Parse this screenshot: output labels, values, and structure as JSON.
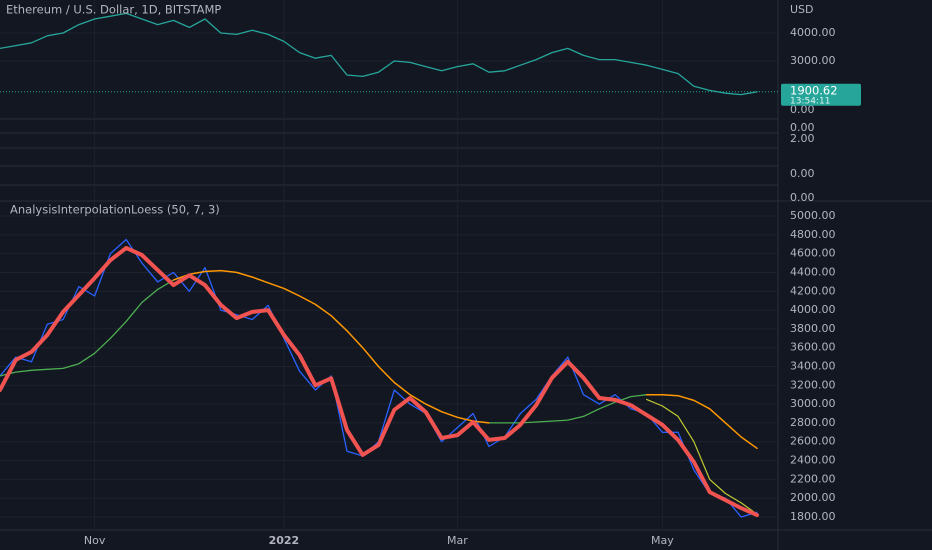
{
  "header": {
    "symbol": "Ethereum / U.S. Dollar, 1D, BITSTAMP",
    "currency": "USD"
  },
  "last_price": {
    "value": 1900.62,
    "label": "1900.62"
  },
  "countdown": "13:54:11",
  "mini_pane_labels": [
    "0.00",
    "0.00",
    "2.00",
    "0.00",
    "0.00"
  ],
  "chart_data": [
    {
      "type": "line",
      "values": [
        3450,
        3550,
        3650,
        3900,
        4000,
        4300,
        4500,
        4600,
        4700,
        4500,
        4300,
        4450,
        4200,
        4500,
        4000,
        3950,
        4100,
        3950,
        3700,
        3300,
        3100,
        3200,
        2500,
        2450,
        2600,
        3000,
        2950,
        2800,
        2650,
        2800,
        2900,
        2600,
        2650,
        2850,
        3050,
        3300,
        3450,
        3200,
        3050,
        3050,
        2950,
        2850,
        2700,
        2550,
        2100,
        1950,
        1850,
        1800,
        1900
      ],
      "color": "#26a69a",
      "ylim": [
        1000,
        5150
      ],
      "yticks": [
        {
          "value": 4000,
          "label": "4000.00"
        },
        {
          "value": 3000,
          "label": "3000.00"
        }
      ],
      "grid": true
    },
    {
      "type": "line",
      "title": "AnalysisInterpolationLoess (50, 7, 3)",
      "categories": [
        null,
        null,
        null,
        null,
        null,
        null,
        "Nov",
        null,
        null,
        null,
        null,
        null,
        null,
        null,
        null,
        null,
        null,
        null,
        "2022",
        null,
        null,
        null,
        null,
        null,
        null,
        null,
        null,
        null,
        null,
        "Mar",
        null,
        null,
        null,
        null,
        null,
        null,
        null,
        null,
        null,
        null,
        null,
        null,
        "May",
        null,
        null,
        null,
        null,
        null,
        null
      ],
      "series": [
        {
          "color": "#2962ff",
          "width": 1.3,
          "values": [
            3300,
            3500,
            3450,
            3850,
            3900,
            4250,
            4150,
            4600,
            4750,
            4500,
            4300,
            4400,
            4200,
            4450,
            4000,
            3950,
            3900,
            4050,
            3700,
            3350,
            3150,
            3300,
            2500,
            2450,
            2600,
            3150,
            3000,
            2900,
            2600,
            2750,
            2900,
            2550,
            2650,
            2900,
            3050,
            3300,
            3500,
            3100,
            3000,
            3100,
            2950,
            2900,
            2700,
            2700,
            2300,
            2050,
            2000,
            1800,
            1850
          ]
        },
        {
          "color": "#4caf50",
          "width": 1.3,
          "values": [
            3300,
            3340,
            3360,
            3370,
            3380,
            3430,
            3540,
            3700,
            3880,
            4080,
            4220,
            4320,
            null,
            null,
            null,
            null,
            null,
            null,
            null,
            null,
            null,
            null,
            null,
            null,
            null,
            null,
            null,
            null,
            null,
            null,
            null,
            2800,
            2800,
            2800,
            2810,
            2820,
            2830,
            2870,
            2950,
            3020,
            3080,
            3100,
            null,
            null,
            null,
            null,
            null,
            null,
            null
          ]
        },
        {
          "color": "#ff9800",
          "width": 1.5,
          "values": [
            null,
            null,
            null,
            null,
            null,
            null,
            null,
            null,
            null,
            null,
            null,
            4320,
            4380,
            4410,
            4420,
            4400,
            4350,
            4290,
            4230,
            4150,
            4060,
            3940,
            3780,
            3600,
            3400,
            3230,
            3100,
            3000,
            2920,
            2860,
            2820,
            2800,
            null,
            null,
            null,
            null,
            null,
            null,
            null,
            null,
            null,
            3100,
            3100,
            3090,
            3040,
            2950,
            2800,
            2650,
            2530
          ]
        },
        {
          "color": "#c0ca33",
          "width": 1.2,
          "values": [
            null,
            null,
            null,
            null,
            null,
            null,
            null,
            null,
            null,
            null,
            null,
            null,
            null,
            null,
            null,
            null,
            null,
            null,
            null,
            null,
            null,
            null,
            null,
            null,
            null,
            null,
            null,
            null,
            null,
            null,
            null,
            null,
            null,
            null,
            null,
            null,
            null,
            null,
            null,
            null,
            null,
            3050,
            2980,
            2870,
            2600,
            2200,
            2050,
            1950,
            1830
          ]
        },
        {
          "color": "#f05350",
          "width": 4,
          "values": [
            3150,
            3470,
            3555,
            3735,
            3980,
            4160,
            4340,
            4530,
            4660,
            4585,
            4425,
            4265,
            4370,
            4265,
            4055,
            3915,
            3980,
            4000,
            3735,
            3520,
            3200,
            3275,
            2725,
            2460,
            2565,
            2940,
            3065,
            2915,
            2640,
            2670,
            2810,
            2620,
            2640,
            2780,
            2990,
            3280,
            3450,
            3280,
            3065,
            3045,
            2990,
            2885,
            2780,
            2620,
            2385,
            2065,
            1980,
            1895,
            1820
          ]
        }
      ],
      "ylim": [
        1700,
        5200
      ],
      "yticks": [
        {
          "value": 5000,
          "label": "5000.00"
        },
        {
          "value": 4800,
          "label": "4800.00"
        },
        {
          "value": 4600,
          "label": "4600.00"
        },
        {
          "value": 4400,
          "label": "4400.00"
        },
        {
          "value": 4200,
          "label": "4200.00"
        },
        {
          "value": 4000,
          "label": "4000.00"
        },
        {
          "value": 3800,
          "label": "3800.00"
        },
        {
          "value": 3600,
          "label": "3600.00"
        },
        {
          "value": 3400,
          "label": "3400.00"
        },
        {
          "value": 3200,
          "label": "3200.00"
        },
        {
          "value": 3000,
          "label": "3000.00"
        },
        {
          "value": 2800,
          "label": "2800.00"
        },
        {
          "value": 2600,
          "label": "2600.00"
        },
        {
          "value": 2400,
          "label": "2400.00"
        },
        {
          "value": 2200,
          "label": "2200.00"
        },
        {
          "value": 2000,
          "label": "2000.00"
        },
        {
          "value": 1800,
          "label": "1800.00"
        }
      ],
      "grid": true
    }
  ]
}
